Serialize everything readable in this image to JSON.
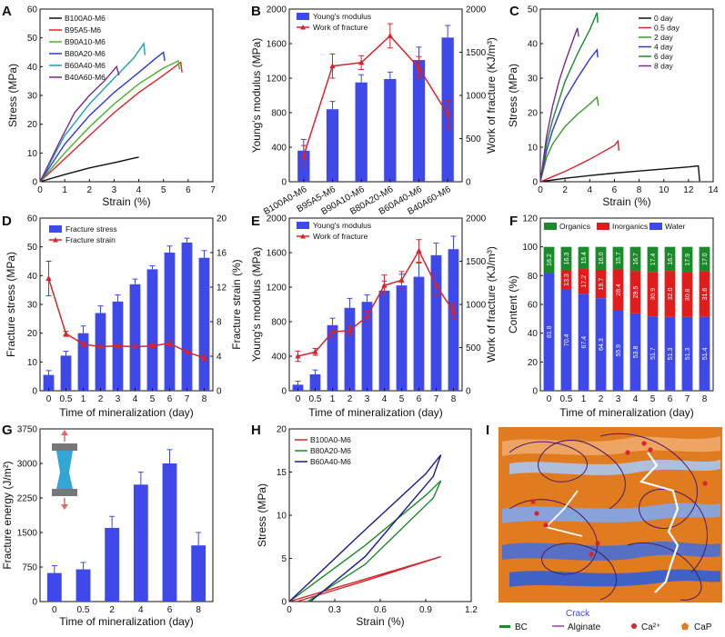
{
  "panels": {
    "A": "A",
    "B": "B",
    "C": "C",
    "D": "D",
    "E": "E",
    "F": "F",
    "G": "G",
    "H": "H",
    "I": "I"
  },
  "colors": {
    "blue": "#3f48e8",
    "red": "#d8242c",
    "green": "#1a8a2a",
    "black": "#111111",
    "teal": "#1fa3b5",
    "purple": "#7a2a8e",
    "navy": "#1a1a8c",
    "orange": "#e07b1f",
    "water": "#3f48e8",
    "organics": "#1a8a2a",
    "inorganics": "#e01c1c"
  },
  "chart_data": [
    {
      "id": "A",
      "type": "line",
      "xlabel": "Strain (%)",
      "ylabel": "Stress (MPa)",
      "xlim": [
        0,
        7
      ],
      "ylim": [
        0,
        60
      ],
      "xticks": [
        "0",
        "1",
        "2",
        "3",
        "4",
        "5",
        "6",
        "7"
      ],
      "yticks": [
        "0",
        "10",
        "20",
        "30",
        "40",
        "50",
        "60"
      ],
      "series": [
        {
          "name": "B100A0-M6",
          "color": "#111111",
          "x": [
            0,
            1,
            2,
            3,
            3.6,
            3.9,
            4.0
          ],
          "y": [
            0,
            2.5,
            4.8,
            6.6,
            7.8,
            8.4,
            8.5
          ]
        },
        {
          "name": "B95A5-M6",
          "color": "#d8242c",
          "x": [
            0,
            1,
            2,
            3,
            4,
            5,
            5.7,
            5.75
          ],
          "y": [
            0,
            8,
            16,
            24,
            31,
            37,
            41.5,
            38
          ]
        },
        {
          "name": "B90A10-M6",
          "color": "#4caf2a",
          "x": [
            0,
            1,
            2,
            3,
            4,
            5,
            5.6,
            5.65
          ],
          "y": [
            0,
            10,
            19,
            27,
            34,
            39.5,
            42,
            39
          ]
        },
        {
          "name": "B80A20-M6",
          "color": "#2b38d6",
          "x": [
            0,
            1,
            2,
            3,
            4,
            4.7,
            5.0,
            5.05
          ],
          "y": [
            0,
            13,
            23,
            31,
            38,
            43,
            45,
            42
          ]
        },
        {
          "name": "B60A40-M6",
          "color": "#1fa3b5",
          "x": [
            0,
            1,
            2,
            3,
            3.8,
            4.2,
            4.25
          ],
          "y": [
            0,
            16,
            27,
            36,
            43,
            48,
            44
          ]
        },
        {
          "name": "B40A60-M6",
          "color": "#7a2a8e",
          "x": [
            0,
            0.8,
            1.4,
            2,
            2.6,
            3.1,
            3.2
          ],
          "y": [
            0,
            14,
            24,
            30,
            35,
            40,
            37
          ]
        }
      ]
    },
    {
      "id": "B",
      "type": "bar",
      "categories": [
        "B100A0-M6",
        "B95A5-M6",
        "B90A10-M6",
        "B80A20-M6",
        "B60A40-M6",
        "B40A60-M6"
      ],
      "ylabel": "Young's modulus (MPa)",
      "y2label": "Work of fracture (KJ/m³)",
      "ylim": [
        0,
        2000
      ],
      "y2lim": [
        0,
        2000
      ],
      "yticks": [
        "0",
        "400",
        "800",
        "1200",
        "1600",
        "2000"
      ],
      "y2ticks": [
        "0",
        "500",
        "1000",
        "1500",
        "2000"
      ],
      "series": [
        {
          "name": "Young's modulus",
          "values": [
            360,
            840,
            1150,
            1190,
            1410,
            1670
          ],
          "errors": [
            130,
            90,
            90,
            80,
            150,
            140
          ]
        },
        {
          "name": "Work of fracture",
          "values": [
            300,
            1340,
            1380,
            1690,
            1320,
            780
          ],
          "errors": [
            120,
            140,
            80,
            140,
            130,
            160
          ]
        }
      ]
    },
    {
      "id": "C",
      "type": "line",
      "xlabel": "Strain (%)",
      "ylabel": "Stress (MPa)",
      "xlim": [
        0,
        14
      ],
      "ylim": [
        0,
        50
      ],
      "xticks": [
        "0",
        "2",
        "4",
        "6",
        "8",
        "10",
        "12",
        "14"
      ],
      "yticks": [
        "0",
        "10",
        "20",
        "30",
        "40",
        "50"
      ],
      "series": [
        {
          "name": "0    day",
          "color": "#111111",
          "x": [
            0,
            2,
            4,
            6,
            8,
            10,
            12,
            12.8,
            12.9
          ],
          "y": [
            0,
            1,
            1.8,
            2.5,
            3.1,
            3.7,
            4.3,
            4.6,
            0.2
          ]
        },
        {
          "name": "0.5 day",
          "color": "#d8242c",
          "x": [
            0,
            1,
            2,
            3,
            4,
            5,
            6,
            6.3,
            6.35
          ],
          "y": [
            0,
            1.5,
            3,
            4.7,
            6.5,
            8.5,
            10.5,
            11.8,
            9
          ]
        },
        {
          "name": "2    day",
          "color": "#3a9a2a",
          "x": [
            0,
            0.5,
            1,
            2,
            3,
            4,
            4.6,
            4.7
          ],
          "y": [
            0,
            7,
            11,
            16,
            19.5,
            22.5,
            24.5,
            22
          ]
        },
        {
          "name": "4    day",
          "color": "#2b38d6",
          "x": [
            0,
            0.5,
            1,
            2,
            3,
            4,
            4.6,
            4.65
          ],
          "y": [
            0,
            9,
            15,
            24,
            30,
            35.5,
            38.2,
            36
          ]
        },
        {
          "name": "6    day",
          "color": "#1a8a2a",
          "x": [
            0,
            0.5,
            1,
            2,
            3,
            4,
            4.6,
            4.65
          ],
          "y": [
            0,
            11,
            18,
            29,
            37,
            44,
            49,
            46
          ]
        },
        {
          "name": "8    day",
          "color": "#7a2a8e",
          "x": [
            0,
            0.5,
            1,
            1.5,
            2,
            2.5,
            3.0,
            3.1
          ],
          "y": [
            0,
            13,
            22,
            29,
            34.5,
            39.5,
            44.5,
            42
          ]
        }
      ]
    },
    {
      "id": "D",
      "type": "bar",
      "categories": [
        "0",
        "0.5",
        "1",
        "2",
        "3",
        "4",
        "5",
        "6",
        "7",
        "8"
      ],
      "xlabel": "Time of mineralization (day)",
      "ylabel": "Fracture stress (MPa)",
      "y2label": "Fracture strain (%)",
      "ylim": [
        0,
        60
      ],
      "y2lim": [
        0,
        20
      ],
      "yticks": [
        "0",
        "10",
        "20",
        "30",
        "40",
        "50",
        "60"
      ],
      "y2ticks": [
        "0",
        "4",
        "8",
        "12",
        "16",
        "20"
      ],
      "series": [
        {
          "name": "Fracture stress",
          "values": [
            5.5,
            12.2,
            20,
            27,
            31,
            37,
            42.2,
            48,
            51.5,
            46.2
          ],
          "errors": [
            1.5,
            1.5,
            2.5,
            2.5,
            2.3,
            1.8,
            1.2,
            2.3,
            1.5,
            2.5
          ]
        },
        {
          "name": "Fracture strain",
          "values": [
            13,
            6.6,
            5.4,
            5.1,
            5.2,
            5.1,
            5.2,
            5.5,
            4.5,
            3.8
          ],
          "errors": [
            2,
            0.3,
            0.3,
            0.2,
            0.3,
            0.2,
            0.2,
            0.3,
            0.2,
            0.3
          ]
        }
      ]
    },
    {
      "id": "E",
      "type": "bar",
      "categories": [
        "0",
        "0.5",
        "1",
        "2",
        "3",
        "4",
        "5",
        "6",
        "7",
        "8"
      ],
      "xlabel": "Time of mineralization (day)",
      "ylabel": "Young's modulus (MPa)",
      "y2label": "Work of fracture (KJ/m³)",
      "ylim": [
        0,
        2000
      ],
      "y2lim": [
        0,
        2000
      ],
      "yticks": [
        "0",
        "400",
        "800",
        "1200",
        "1600",
        "2000"
      ],
      "y2ticks": [
        "0",
        "500",
        "1000",
        "1500",
        "2000"
      ],
      "series": [
        {
          "name": "Young's modulus",
          "values": [
            70,
            190,
            760,
            960,
            1030,
            1160,
            1220,
            1320,
            1570,
            1640
          ],
          "errors": [
            40,
            50,
            80,
            110,
            80,
            110,
            130,
            160,
            140,
            150
          ]
        },
        {
          "name": "Work of fracture",
          "values": [
            400,
            450,
            680,
            700,
            860,
            1220,
            1280,
            1620,
            1220,
            920
          ],
          "errors": [
            60,
            40,
            60,
            50,
            60,
            120,
            100,
            130,
            110,
            90
          ]
        }
      ]
    },
    {
      "id": "F",
      "type": "bar",
      "categories": [
        "0",
        "0.5",
        "1",
        "2",
        "3",
        "4",
        "5",
        "6",
        "7",
        "8"
      ],
      "xlabel": "Time of mineralization (day)",
      "ylabel": "Content (%)",
      "ylim": [
        0,
        120
      ],
      "yticks": [
        "0",
        "20",
        "40",
        "60",
        "80",
        "100",
        "120"
      ],
      "legend": [
        "Organics",
        "Inorganics",
        "Water"
      ],
      "series": [
        {
          "name": "Water",
          "values": [
            81.8,
            70.4,
            67.4,
            64.3,
            55.9,
            53.8,
            51.7,
            51.3,
            51.3,
            51.4
          ],
          "labels": [
            "81.8",
            "70.4",
            "67.4",
            "64.3",
            "55.9",
            "53.8",
            "51.7",
            "51.3",
            "51.3",
            "51.4"
          ]
        },
        {
          "name": "Inorganics",
          "values": [
            0,
            13.3,
            17.2,
            19.7,
            28.4,
            29.5,
            30.9,
            32.0,
            30.8,
            31.6
          ],
          "labels": [
            "",
            "13.3",
            "17.2",
            "19.7",
            "28.4",
            "29.5",
            "30.9",
            "32.0",
            "30.8",
            "31.6"
          ]
        },
        {
          "name": "Organics",
          "values": [
            18.2,
            16.3,
            15.4,
            16.0,
            15.7,
            16.7,
            17.4,
            16.7,
            17.9,
            17.0
          ],
          "labels": [
            "18.2",
            "16.3",
            "15.4",
            "16.0",
            "15.7",
            "16.7",
            "17.4",
            "16.7",
            "17.9",
            "17.0"
          ]
        }
      ]
    },
    {
      "id": "G",
      "type": "bar",
      "categories": [
        "0",
        "0.5",
        "2",
        "4",
        "6",
        "8"
      ],
      "xlabel": "Time of mineralization (day)",
      "ylabel": "Fracture energy (J/m²)",
      "ylim": [
        0,
        3750
      ],
      "yticks": [
        "0",
        "750",
        "1500",
        "2250",
        "3000",
        "3750"
      ],
      "series": [
        {
          "name": "Fracture energy",
          "values": [
            620,
            700,
            1600,
            2540,
            3000,
            1220
          ],
          "errors": [
            160,
            150,
            250,
            270,
            300,
            280
          ]
        }
      ]
    },
    {
      "id": "H",
      "type": "line",
      "xlabel": "Strain (%)",
      "ylabel": "Stress (MPa)",
      "xlim": [
        0,
        1.2
      ],
      "ylim": [
        0,
        20
      ],
      "xticks": [
        "0",
        "0.3",
        "0.6",
        "0.9",
        "1.2"
      ],
      "yticks": [
        "0",
        "5",
        "10",
        "15",
        "20"
      ],
      "series": [
        {
          "name": "B100A0-M6",
          "color": "#d8242c",
          "x": [
            0,
            0.5,
            1.0,
            0.5,
            0.05
          ],
          "y": [
            0,
            2.6,
            5.2,
            2.4,
            0
          ]
        },
        {
          "name": "B80A20-M6",
          "color": "#1a8a2a",
          "x": [
            0,
            0.5,
            0.9,
            1.0,
            0.95,
            0.5,
            0.12
          ],
          "y": [
            0,
            6.5,
            12.3,
            14,
            12,
            4.3,
            0
          ]
        },
        {
          "name": "B60A40-M6",
          "color": "#1a1a8c",
          "x": [
            0,
            0.5,
            0.9,
            1.0,
            0.95,
            0.5,
            0.14
          ],
          "y": [
            0,
            8.3,
            14.8,
            17,
            14.5,
            5.2,
            0
          ]
        }
      ]
    }
  ],
  "panel_I": {
    "crack_label": "Crack",
    "legend": [
      {
        "name": "BC"
      },
      {
        "name": "Alginate"
      },
      {
        "name": "Ca²⁺"
      },
      {
        "name": "CaP"
      }
    ]
  }
}
